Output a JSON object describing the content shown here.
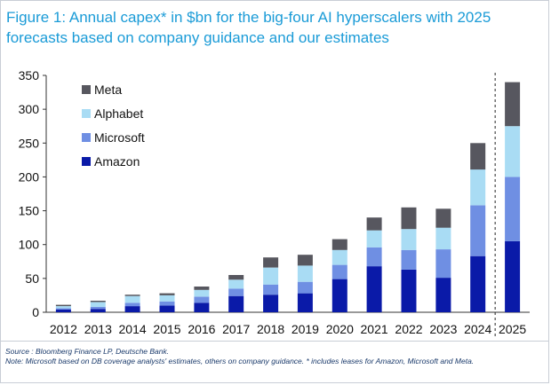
{
  "title": "Figure 1: Annual capex* in $bn for the big-four AI hyperscalers with 2025 forecasts based on company guidance and our estimates",
  "source": "Source : Bloomberg Finance LP, Deutsche Bank.",
  "note": "Note: Microsoft based on DB coverage analysts' estimates, others on company guidance. * includes leases for Amazon, Microsoft and Meta.",
  "colors": {
    "Amazon": "#0a1aa8",
    "Microsoft": "#6f8fe3",
    "Alphabet": "#a9dcf4",
    "Meta": "#57575f"
  },
  "chart_data": {
    "type": "bar",
    "stacked": true,
    "categories": [
      "2012",
      "2013",
      "2014",
      "2015",
      "2016",
      "2017",
      "2018",
      "2019",
      "2020",
      "2021",
      "2022",
      "2023",
      "2024",
      "2025"
    ],
    "series": [
      {
        "name": "Amazon",
        "values": [
          4,
          5,
          9,
          10,
          14,
          24,
          26,
          28,
          49,
          68,
          63,
          51,
          83,
          105
        ]
      },
      {
        "name": "Microsoft",
        "values": [
          2,
          3,
          5,
          6,
          9,
          11,
          15,
          17,
          21,
          28,
          29,
          42,
          75,
          95
        ]
      },
      {
        "name": "Alphabet",
        "values": [
          3,
          7,
          10,
          9,
          10,
          13,
          25,
          24,
          22,
          25,
          31,
          32,
          53,
          75
        ]
      },
      {
        "name": "Meta",
        "values": [
          2,
          2,
          2,
          3,
          5,
          7,
          15,
          16,
          16,
          19,
          32,
          28,
          39,
          65
        ]
      }
    ],
    "legend": [
      "Meta",
      "Alphabet",
      "Microsoft",
      "Amazon"
    ],
    "legend_position": "top-left",
    "ylim": [
      0,
      350
    ],
    "yticks": [
      "0",
      "50",
      "100",
      "150",
      "200",
      "250",
      "300",
      "350"
    ],
    "forecast_divider_between": [
      "2024",
      "2025"
    ],
    "xlabel": "",
    "ylabel": "",
    "grid": false
  }
}
